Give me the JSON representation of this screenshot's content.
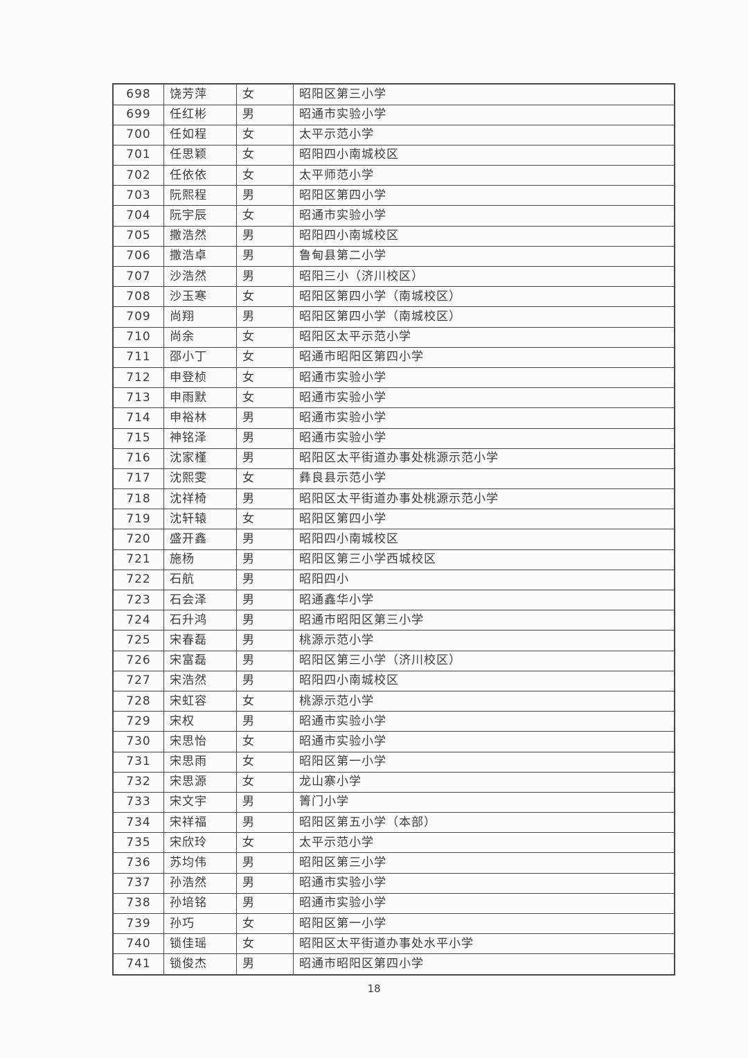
{
  "colors": {
    "background": "#fcfcfc",
    "text": "#3b3b3b",
    "table_border": "#474747"
  },
  "footer": {
    "page_number": "18"
  },
  "table": {
    "rows": [
      {
        "num": "698",
        "name": "饶芳萍",
        "gender": "女",
        "school": "昭阳区第三小学",
        "bottom_divider": "solid"
      },
      {
        "num": "699",
        "name": "任红彬",
        "gender": "男",
        "school": "昭通市实验小学",
        "bottom_divider": "solid"
      },
      {
        "num": "700",
        "name": "任如程",
        "gender": "女",
        "school": "太平示范小学",
        "bottom_divider": "solid"
      },
      {
        "num": "701",
        "name": "任思颖",
        "gender": "女",
        "school": "昭阳四小南城校区",
        "bottom_divider": "solid"
      },
      {
        "num": "702",
        "name": "任依依",
        "gender": "女",
        "school": "太平师范小学",
        "bottom_divider": "solid"
      },
      {
        "num": "703",
        "name": "阮熙程",
        "gender": "男",
        "school": "昭阳区第四小学",
        "bottom_divider": "dotted"
      },
      {
        "num": "704",
        "name": "阮宇辰",
        "gender": "女",
        "school": "昭通市实验小学",
        "bottom_divider": "solid"
      },
      {
        "num": "705",
        "name": "撒浩然",
        "gender": "男",
        "school": "昭阳四小南城校区",
        "bottom_divider": "solid"
      },
      {
        "num": "706",
        "name": "撒浩卓",
        "gender": "男",
        "school": "鲁甸县第二小学",
        "bottom_divider": "solid"
      },
      {
        "num": "707",
        "name": "沙浩然",
        "gender": "男",
        "school": "昭阳三小（济川校区）",
        "bottom_divider": "dotted"
      },
      {
        "num": "708",
        "name": "沙玉寒",
        "gender": "女",
        "school": "昭阳区第四小学（南城校区）",
        "bottom_divider": "solid"
      },
      {
        "num": "709",
        "name": "尚翔",
        "gender": "男",
        "school": "昭阳区第四小学（南城校区）",
        "bottom_divider": "dotted"
      },
      {
        "num": "710",
        "name": "尚余",
        "gender": "女",
        "school": "昭阳区太平示范小学",
        "bottom_divider": "solid"
      },
      {
        "num": "711",
        "name": "邵小丁",
        "gender": "女",
        "school": "昭通市昭阳区第四小学",
        "bottom_divider": "solid"
      },
      {
        "num": "712",
        "name": "申登桢",
        "gender": "女",
        "school": "昭通市实验小学",
        "bottom_divider": "solid"
      },
      {
        "num": "713",
        "name": "申雨默",
        "gender": "女",
        "school": "昭通市实验小学",
        "bottom_divider": "dotted"
      },
      {
        "num": "714",
        "name": "申裕林",
        "gender": "男",
        "school": "昭通市实验小学",
        "bottom_divider": "solid"
      },
      {
        "num": "715",
        "name": "神铭泽",
        "gender": "男",
        "school": "昭通市实验小学",
        "bottom_divider": "solid"
      },
      {
        "num": "716",
        "name": "沈家槿",
        "gender": "男",
        "school": "昭阳区太平街道办事处桃源示范小学",
        "bottom_divider": "solid"
      },
      {
        "num": "717",
        "name": "沈熙雯",
        "gender": "女",
        "school": "彝良县示范小学",
        "bottom_divider": "solid"
      },
      {
        "num": "718",
        "name": "沈祥椅",
        "gender": "男",
        "school": "昭阳区太平街道办事处桃源示范小学",
        "bottom_divider": "solid"
      },
      {
        "num": "719",
        "name": "沈轩辕",
        "gender": "女",
        "school": "昭阳区第四小学",
        "bottom_divider": "solid"
      },
      {
        "num": "720",
        "name": "盛开鑫",
        "gender": "男",
        "school": "昭阳四小南城校区",
        "bottom_divider": "solid"
      },
      {
        "num": "721",
        "name": "施杨",
        "gender": "男",
        "school": "昭阳区第三小学西城校区",
        "bottom_divider": "solid"
      },
      {
        "num": "722",
        "name": "石航",
        "gender": "男",
        "school": "昭阳四小",
        "bottom_divider": "dotted"
      },
      {
        "num": "723",
        "name": "石会泽",
        "gender": "男",
        "school": "昭通鑫华小学",
        "bottom_divider": "solid"
      },
      {
        "num": "724",
        "name": "石升鸿",
        "gender": "男",
        "school": "昭通市昭阳区第三小学",
        "bottom_divider": "dotted"
      },
      {
        "num": "725",
        "name": "宋春磊",
        "gender": "男",
        "school": "桃源示范小学",
        "bottom_divider": "solid"
      },
      {
        "num": "726",
        "name": "宋富磊",
        "gender": "男",
        "school": "昭阳区第三小学（济川校区）",
        "bottom_divider": "dashed"
      },
      {
        "num": "727",
        "name": "宋浩然",
        "gender": "男",
        "school": "昭阳四小南城校区",
        "bottom_divider": "solid"
      },
      {
        "num": "728",
        "name": "宋虹容",
        "gender": "女",
        "school": "桃源示范小学",
        "bottom_divider": "dotted"
      },
      {
        "num": "729",
        "name": "宋权",
        "gender": "男",
        "school": "昭通市实验小学",
        "bottom_divider": "solid"
      },
      {
        "num": "730",
        "name": "宋思怡",
        "gender": "女",
        "school": "昭通市实验小学",
        "bottom_divider": "solid"
      },
      {
        "num": "731",
        "name": "宋思雨",
        "gender": "女",
        "school": "昭阳区第一小学",
        "bottom_divider": "solid"
      },
      {
        "num": "732",
        "name": "宋思源",
        "gender": "女",
        "school": "龙山寨小学",
        "bottom_divider": "solid"
      },
      {
        "num": "733",
        "name": "宋文宇",
        "gender": "男",
        "school": "箐门小学",
        "bottom_divider": "solid"
      },
      {
        "num": "734",
        "name": "宋祥福",
        "gender": "男",
        "school": "昭阳区第五小学（本部）",
        "bottom_divider": "dashed"
      },
      {
        "num": "735",
        "name": "宋欣玲",
        "gender": "女",
        "school": "太平示范小学",
        "bottom_divider": "solid"
      },
      {
        "num": "736",
        "name": "苏均伟",
        "gender": "男",
        "school": "昭阳区第三小学",
        "bottom_divider": "solid"
      },
      {
        "num": "737",
        "name": "孙浩然",
        "gender": "男",
        "school": "昭通市实验小学",
        "bottom_divider": "dotted"
      },
      {
        "num": "738",
        "name": "孙培铭",
        "gender": "男",
        "school": "昭通市实验小学",
        "bottom_divider": "solid"
      },
      {
        "num": "739",
        "name": "孙巧",
        "gender": "女",
        "school": "昭阳区第一小学",
        "bottom_divider": "solid"
      },
      {
        "num": "740",
        "name": "锁佳瑶",
        "gender": "女",
        "school": "昭阳区太平街道办事处水平小学",
        "bottom_divider": "solid"
      },
      {
        "num": "741",
        "name": "锁俊杰",
        "gender": "男",
        "school": "昭通市昭阳区第四小学",
        "bottom_divider": "solid"
      }
    ]
  }
}
